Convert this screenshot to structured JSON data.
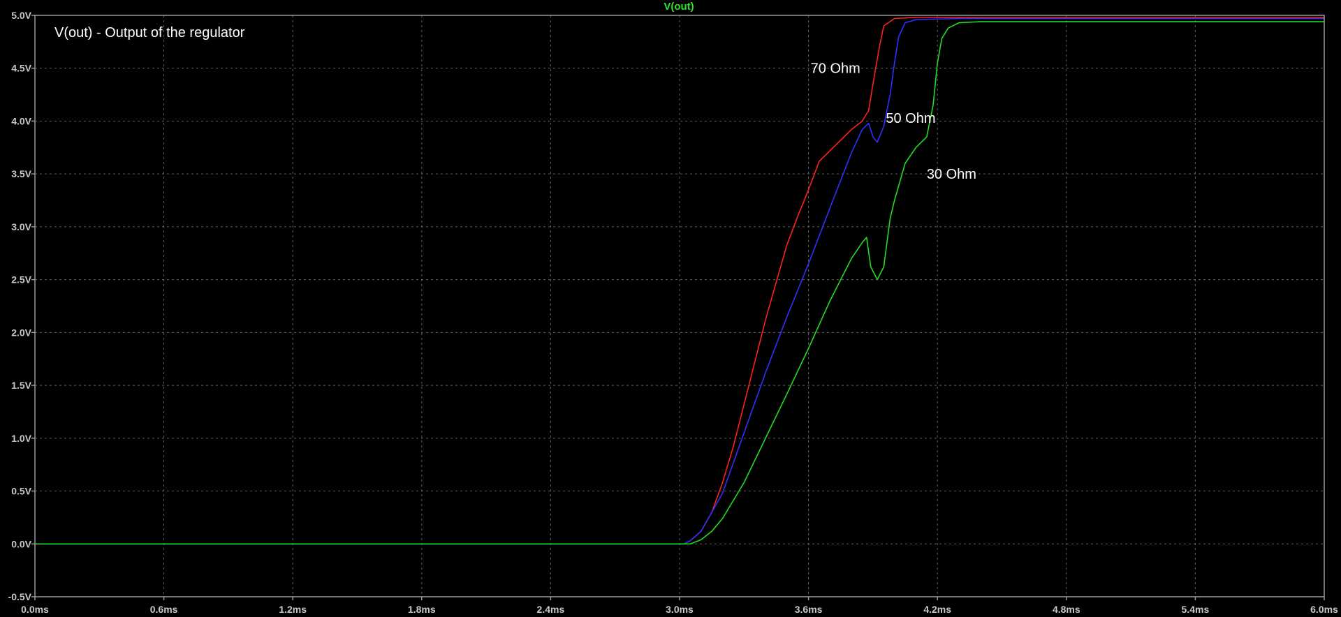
{
  "chart_data": {
    "type": "line",
    "header": "V(out)",
    "annotation_title": "V(out) - Output of the regulator",
    "xlim": [
      0.0,
      6.0
    ],
    "ylim": [
      -0.5,
      5.0
    ],
    "x_ticks": [
      {
        "value": 0.0,
        "label": "0.0ms"
      },
      {
        "value": 0.6,
        "label": "0.6ms"
      },
      {
        "value": 1.2,
        "label": "1.2ms"
      },
      {
        "value": 1.8,
        "label": "1.8ms"
      },
      {
        "value": 2.4,
        "label": "2.4ms"
      },
      {
        "value": 3.0,
        "label": "3.0ms"
      },
      {
        "value": 3.6,
        "label": "3.6ms"
      },
      {
        "value": 4.2,
        "label": "4.2ms"
      },
      {
        "value": 4.8,
        "label": "4.8ms"
      },
      {
        "value": 5.4,
        "label": "5.4ms"
      },
      {
        "value": 6.0,
        "label": "6.0ms"
      }
    ],
    "y_ticks": [
      {
        "value": 5.0,
        "label": "5.0V"
      },
      {
        "value": 4.5,
        "label": "4.5V"
      },
      {
        "value": 4.0,
        "label": "4.0V"
      },
      {
        "value": 3.5,
        "label": "3.5V"
      },
      {
        "value": 3.0,
        "label": "3.0V"
      },
      {
        "value": 2.5,
        "label": "2.5V"
      },
      {
        "value": 2.0,
        "label": "2.0V"
      },
      {
        "value": 1.5,
        "label": "1.5V"
      },
      {
        "value": 1.0,
        "label": "1.0V"
      },
      {
        "value": 0.5,
        "label": "0.5V"
      },
      {
        "value": 0.0,
        "label": "0.0V"
      },
      {
        "value": -0.5,
        "label": "-0.5V"
      }
    ],
    "grid": true,
    "series": [
      {
        "name": "70 Ohm",
        "color": "#ff2020",
        "label_at": [
          3.61,
          4.5
        ],
        "x": [
          0.0,
          3.02,
          3.05,
          3.1,
          3.15,
          3.2,
          3.25,
          3.3,
          3.35,
          3.4,
          3.45,
          3.5,
          3.55,
          3.6,
          3.65,
          3.7,
          3.75,
          3.8,
          3.85,
          3.88,
          3.9,
          3.93,
          3.95,
          4.0,
          4.1,
          4.3,
          6.0
        ],
        "y": [
          0.0,
          0.0,
          0.03,
          0.12,
          0.3,
          0.58,
          0.92,
          1.32,
          1.72,
          2.12,
          2.48,
          2.83,
          3.1,
          3.35,
          3.62,
          3.72,
          3.82,
          3.92,
          4.0,
          4.1,
          4.35,
          4.7,
          4.9,
          4.97,
          4.98,
          4.98,
          4.98
        ]
      },
      {
        "name": "50 Ohm",
        "color": "#3030ff",
        "label_at": [
          3.96,
          4.03
        ],
        "x": [
          0.0,
          3.02,
          3.05,
          3.1,
          3.2,
          3.3,
          3.4,
          3.5,
          3.6,
          3.7,
          3.8,
          3.85,
          3.88,
          3.9,
          3.92,
          3.95,
          3.98,
          4.0,
          4.02,
          4.05,
          4.1,
          4.3,
          6.0
        ],
        "y": [
          0.0,
          0.0,
          0.03,
          0.12,
          0.48,
          1.05,
          1.62,
          2.15,
          2.65,
          3.18,
          3.7,
          3.92,
          3.98,
          3.85,
          3.8,
          3.95,
          4.25,
          4.55,
          4.8,
          4.93,
          4.96,
          4.97,
          4.97
        ]
      },
      {
        "name": "30 Ohm",
        "color": "#22dd22",
        "label_at": [
          4.15,
          3.5
        ],
        "x": [
          0.0,
          3.05,
          3.1,
          3.15,
          3.2,
          3.3,
          3.4,
          3.5,
          3.6,
          3.7,
          3.8,
          3.85,
          3.87,
          3.89,
          3.92,
          3.95,
          3.98,
          4.0,
          4.05,
          4.1,
          4.15,
          4.18,
          4.2,
          4.22,
          4.25,
          4.3,
          4.4,
          6.0
        ],
        "y": [
          0.0,
          0.0,
          0.04,
          0.12,
          0.24,
          0.58,
          1.0,
          1.42,
          1.85,
          2.3,
          2.7,
          2.85,
          2.9,
          2.62,
          2.5,
          2.62,
          3.08,
          3.25,
          3.6,
          3.75,
          3.85,
          4.15,
          4.55,
          4.78,
          4.88,
          4.93,
          4.94,
          4.94
        ]
      }
    ]
  }
}
